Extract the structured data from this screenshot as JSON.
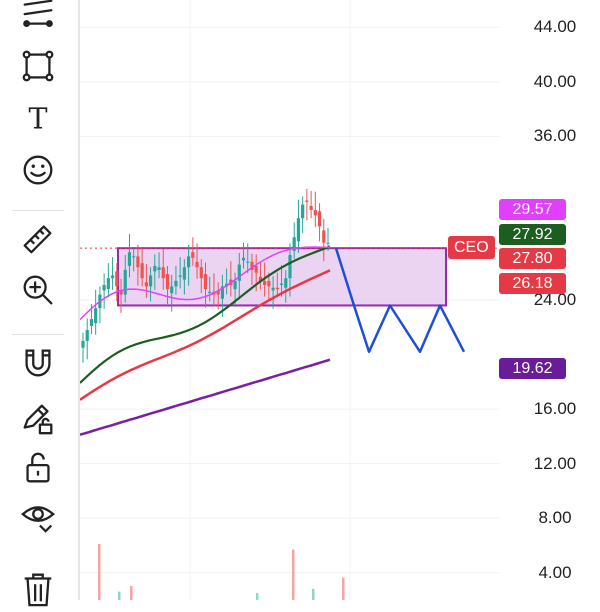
{
  "toolbar": {
    "tools": [
      {
        "name": "trend-lines-icon"
      },
      {
        "name": "rectangle-icon"
      },
      {
        "name": "text-icon",
        "glyph": "T"
      },
      {
        "name": "emoji-icon"
      },
      {
        "name": "ruler-icon"
      },
      {
        "name": "zoom-in-icon"
      },
      {
        "name": "magnet-icon"
      },
      {
        "name": "lock-drawing-icon"
      },
      {
        "name": "unlock-icon"
      },
      {
        "name": "eye-icon"
      },
      {
        "name": "trash-icon"
      }
    ]
  },
  "price_axis": {
    "ticks": [
      "44.00",
      "40.00",
      "36.00",
      "24.00",
      "16.00",
      "12.00",
      "8.00",
      "4.00"
    ]
  },
  "badges": {
    "symbol": {
      "label": "CEO",
      "color": "#e53946"
    },
    "prices": [
      {
        "value": "29.57",
        "color": "#e040fb"
      },
      {
        "value": "27.92",
        "color": "#1b5e20"
      },
      {
        "value": "27.80",
        "color": "#e53946"
      },
      {
        "value": "26.18",
        "color": "#e53946"
      },
      {
        "value": "19.62",
        "color": "#6a1b9a"
      }
    ]
  },
  "colors": {
    "up": "#26a69a",
    "down": "#ef5350",
    "ma_fast": "#e040fb",
    "ma_mid": "#1b5e20",
    "ma_slow": "#e53946",
    "ma_long": "#7b1fa2",
    "rect_fill": "#e5c9ee",
    "rect_stroke": "#9c27b0",
    "projection": "#1e4fd8"
  },
  "chart_data": {
    "type": "candlestick",
    "ylim": [
      2.0,
      46.0
    ],
    "y_ticks": [
      44,
      40,
      36,
      24,
      16,
      12,
      8,
      4
    ],
    "last_price": 27.8,
    "zone": {
      "high": 27.8,
      "low": 23.6
    },
    "projection": [
      27.8,
      23.6,
      20.2,
      23.6,
      20.2,
      23.6,
      20.2
    ],
    "ma_values": {
      "ma_fast": 29.57,
      "ma_mid": 27.92,
      "ma_slow": 26.18,
      "ma_long": 19.62
    },
    "price_path": [
      21,
      21.8,
      22.6,
      23.4,
      24.4,
      25.1,
      25.6,
      25.8,
      25.0,
      24.4,
      26.2,
      27.5,
      27.2,
      26.4,
      25.6,
      25.0,
      25.8,
      26.5,
      26.4,
      25.6,
      24.8,
      25.0,
      25.4,
      25.8,
      26.4,
      27.2,
      27.1,
      26.4,
      25.6,
      24.8,
      24.6,
      24.4,
      24.4,
      25.0,
      25.2,
      25.1,
      25.4,
      26.6,
      27.1,
      26.8,
      26.2,
      26.0,
      25.4,
      25.1,
      25.0,
      24.9,
      24.8,
      25.2,
      25.6,
      27.3,
      28.6,
      30.0,
      31.0,
      31.2,
      30.6,
      30.2,
      29.4,
      28.2,
      28.2
    ],
    "volume": [
      4.0,
      0.6,
      1.0,
      0.5,
      3.6,
      0.8,
      1.6
    ]
  }
}
